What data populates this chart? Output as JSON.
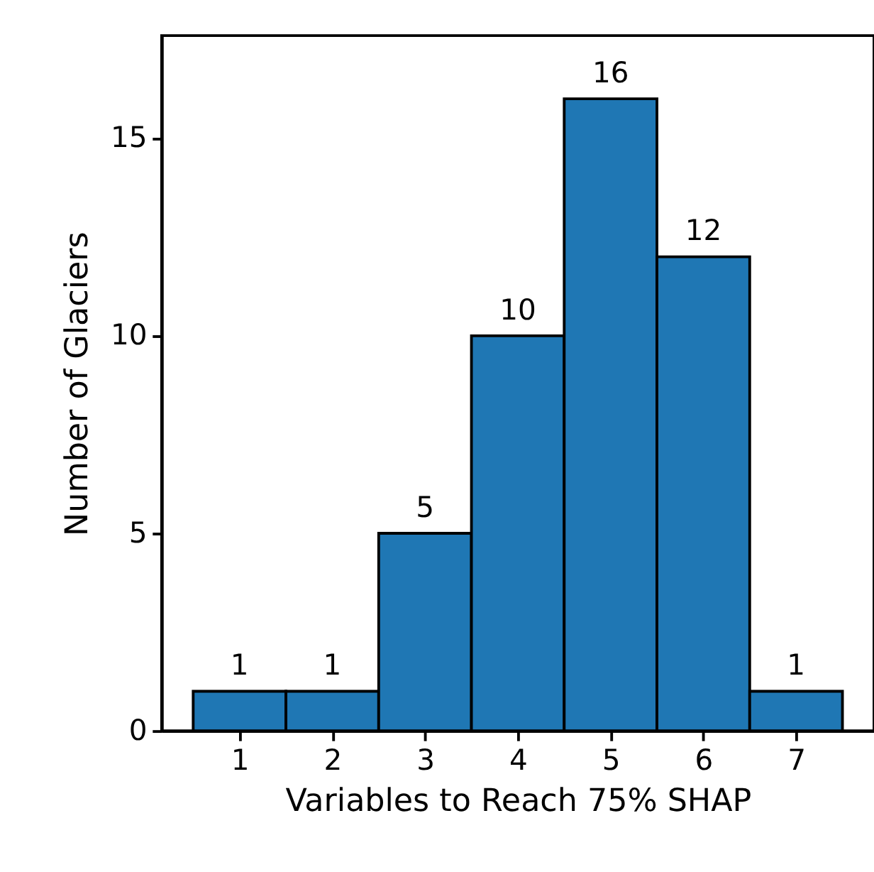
{
  "chart_data": {
    "type": "histogram",
    "xlabel": "Variables to Reach 75% SHAP",
    "ylabel": "Number of Glaciers",
    "bins": [
      0.5,
      1.5,
      2.5,
      3.5,
      4.5,
      5.5,
      6.5,
      7.5
    ],
    "values": [
      1,
      1,
      5,
      10,
      16,
      12,
      1
    ],
    "color": "#1f77b4",
    "xlim": [
      0.16,
      7.84
    ],
    "ylim": [
      0,
      17.6
    ],
    "xticks": [
      1,
      2,
      3,
      4,
      5,
      6,
      7
    ],
    "yticks": [
      0,
      5,
      10,
      15
    ],
    "data_labels": true,
    "grid": false
  }
}
